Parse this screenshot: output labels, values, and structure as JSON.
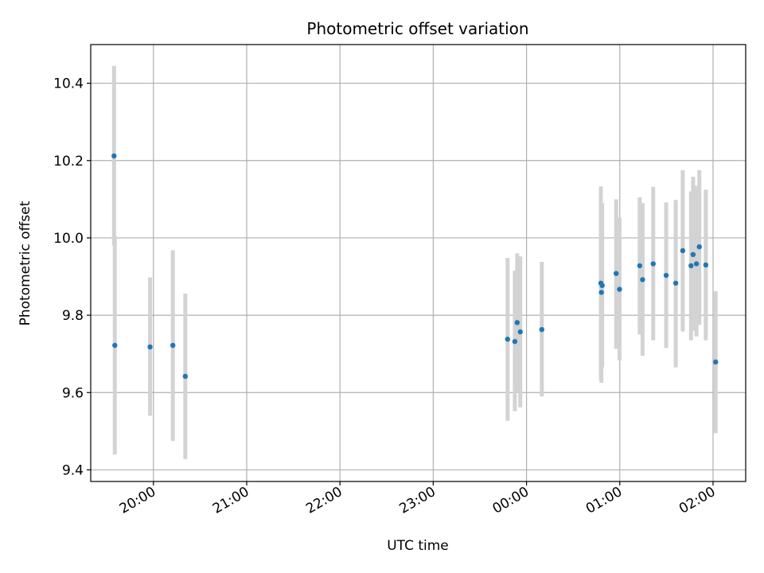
{
  "chart_data": {
    "type": "scatter",
    "title": "Photometric offset variation",
    "xlabel": "UTC time",
    "ylabel": "Photometric offset",
    "x_tick_labels": [
      "20:00",
      "21:00",
      "22:00",
      "23:00",
      "00:00",
      "01:00",
      "02:00"
    ],
    "x_tick_values": [
      "2000-01-01T20:00",
      "2000-01-01T21:00",
      "2000-01-01T22:00",
      "2000-01-01T23:00",
      "2000-01-02T00:00",
      "2000-01-02T01:00",
      "2000-01-02T02:00"
    ],
    "y_tick_labels": [
      "9.4",
      "9.6",
      "9.8",
      "10.0",
      "10.2",
      "10.4"
    ],
    "y_tick_values": [
      9.4,
      9.6,
      9.8,
      10.0,
      10.2,
      10.4
    ],
    "xlim": [
      "2000-01-01T19:19:40",
      "2000-01-02T02:21:00"
    ],
    "ylim": [
      9.37,
      10.5
    ],
    "grid": true,
    "marker_color": "#1f77b4",
    "errorbar_color": "#d3d3d3",
    "points": [
      {
        "x": "2000-01-01T19:34:40",
        "y": 10.212,
        "ylo": 9.98,
        "yhi": 10.445
      },
      {
        "x": "2000-01-01T19:35:10",
        "y": 9.722,
        "ylo": 9.44,
        "yhi": 10.005
      },
      {
        "x": "2000-01-01T19:57:50",
        "y": 9.718,
        "ylo": 9.54,
        "yhi": 9.898
      },
      {
        "x": "2000-01-01T20:12:30",
        "y": 9.722,
        "ylo": 9.475,
        "yhi": 9.968
      },
      {
        "x": "2000-01-01T20:20:30",
        "y": 9.642,
        "ylo": 9.428,
        "yhi": 9.856
      },
      {
        "x": "2000-01-01T23:47:50",
        "y": 9.738,
        "ylo": 9.527,
        "yhi": 9.948
      },
      {
        "x": "2000-01-01T23:52:30",
        "y": 9.732,
        "ylo": 9.552,
        "yhi": 9.915
      },
      {
        "x": "2000-01-01T23:54:00",
        "y": 9.781,
        "ylo": 9.6,
        "yhi": 9.96
      },
      {
        "x": "2000-01-01T23:56:00",
        "y": 9.757,
        "ylo": 9.562,
        "yhi": 9.952
      },
      {
        "x": "2000-01-02T00:09:50",
        "y": 9.763,
        "ylo": 9.59,
        "yhi": 9.938
      },
      {
        "x": "2000-01-02T00:47:50",
        "y": 9.883,
        "ylo": 9.633,
        "yhi": 10.133
      },
      {
        "x": "2000-01-02T00:48:40",
        "y": 9.877,
        "ylo": 9.665,
        "yhi": 10.09
      },
      {
        "x": "2000-01-02T00:48:10",
        "y": 9.859,
        "ylo": 9.625,
        "yhi": 10.09
      },
      {
        "x": "2000-01-02T00:57:40",
        "y": 9.908,
        "ylo": 9.713,
        "yhi": 10.1
      },
      {
        "x": "2000-01-02T00:59:50",
        "y": 9.867,
        "ylo": 9.683,
        "yhi": 10.052
      },
      {
        "x": "2000-01-02T01:12:50",
        "y": 9.928,
        "ylo": 9.75,
        "yhi": 10.105
      },
      {
        "x": "2000-01-02T01:14:40",
        "y": 9.892,
        "ylo": 9.695,
        "yhi": 10.09
      },
      {
        "x": "2000-01-02T01:21:30",
        "y": 9.933,
        "ylo": 9.735,
        "yhi": 10.132
      },
      {
        "x": "2000-01-02T01:29:50",
        "y": 9.903,
        "ylo": 9.715,
        "yhi": 10.092
      },
      {
        "x": "2000-01-02T01:36:00",
        "y": 9.883,
        "ylo": 9.665,
        "yhi": 10.098
      },
      {
        "x": "2000-01-02T01:40:30",
        "y": 9.967,
        "ylo": 9.758,
        "yhi": 10.175
      },
      {
        "x": "2000-01-02T01:45:50",
        "y": 9.928,
        "ylo": 9.735,
        "yhi": 10.12
      },
      {
        "x": "2000-01-02T01:47:10",
        "y": 9.957,
        "ylo": 9.76,
        "yhi": 10.158
      },
      {
        "x": "2000-01-02T01:49:20",
        "y": 9.933,
        "ylo": 9.745,
        "yhi": 10.135
      },
      {
        "x": "2000-01-02T01:51:10",
        "y": 9.977,
        "ylo": 9.775,
        "yhi": 10.175
      },
      {
        "x": "2000-01-02T01:55:20",
        "y": 9.93,
        "ylo": 9.735,
        "yhi": 10.125
      },
      {
        "x": "2000-01-02T02:01:40",
        "y": 9.679,
        "ylo": 9.495,
        "yhi": 9.862
      }
    ]
  }
}
